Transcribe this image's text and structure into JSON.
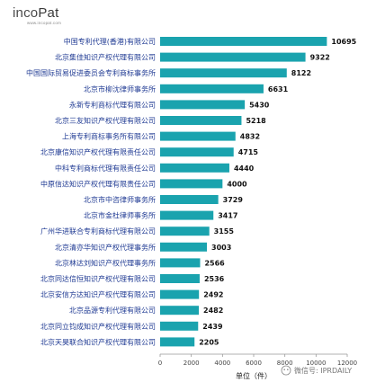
{
  "logo": {
    "brand_prefix": "inco",
    "brand_suffix": "Pat",
    "url": "www.incopat.com"
  },
  "watermark": {
    "text": "微信号: IPRDAILY",
    "icon": "wechat-icon"
  },
  "colors": {
    "bar": "#1aa3ae",
    "category_text": "#1f3a93",
    "axis": "#999999"
  },
  "chart_data": {
    "type": "bar",
    "orientation": "horizontal",
    "categories": [
      "中国专利代理(香港)有限公司",
      "北京集佳知识产权代理有限公司",
      "中国国际贸易促进委员会专利商标事务所",
      "北京市柳沈律师事务所",
      "永新专利商标代理有限公司",
      "北京三友知识产权代理有限公司",
      "上海专利商标事务所有限公司",
      "北京康信知识产权代理有限责任公司",
      "中科专利商标代理有限责任公司",
      "中原信达知识产权代理有限责任公司",
      "北京市中咨律师事务所",
      "北京市金杜律师事务所",
      "广州华进联合专利商标代理有限公司",
      "北京清亦华知识产权代理事务所",
      "北京林达刘知识产权代理事务所",
      "北京同达信恒知识产权代理有限公司",
      "北京安信方达知识产权代理有限公司",
      "北京品源专利代理有限公司",
      "北京同立钧成知识产权代理有限公司",
      "北京天昊联合知识产权代理有限公司"
    ],
    "values": [
      10695,
      9322,
      8122,
      6631,
      5430,
      5218,
      4832,
      4715,
      4440,
      4000,
      3729,
      3417,
      3155,
      3003,
      2566,
      2536,
      2492,
      2482,
      2439,
      2205
    ],
    "xlabel": "单位（件）",
    "xlim": [
      0,
      12000
    ],
    "xticks": [
      "0",
      "2000",
      "4000",
      "6000",
      "8000",
      "10000",
      "12000"
    ],
    "grid": false,
    "legend": "none"
  }
}
